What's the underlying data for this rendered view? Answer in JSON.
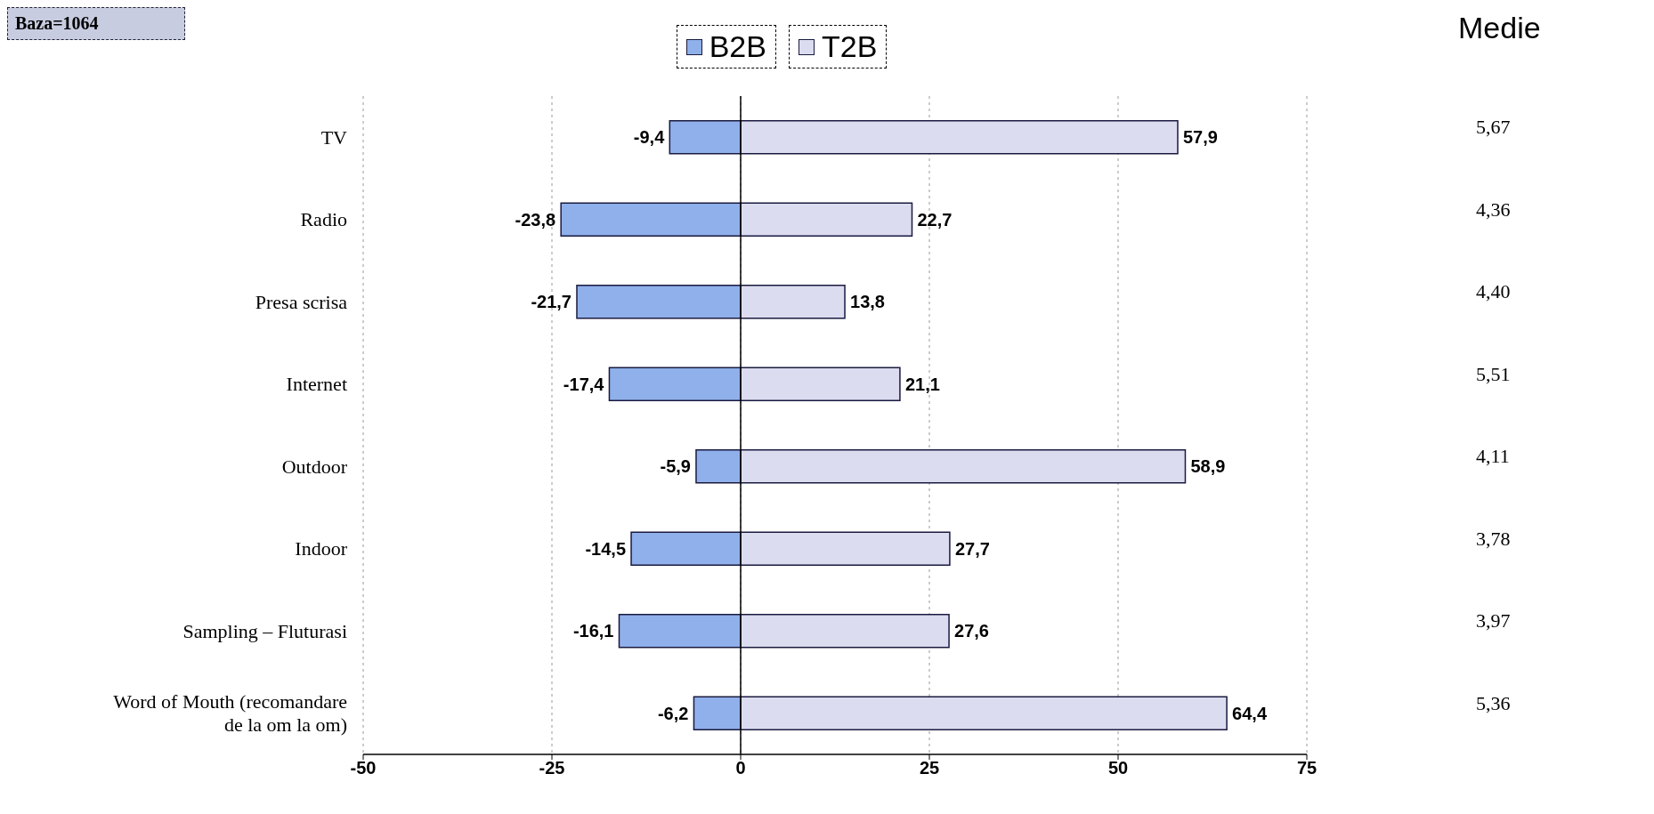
{
  "chart_data": {
    "type": "bar",
    "orientation": "horizontal",
    "stacked": true,
    "categories": [
      "TV",
      "Radio",
      "Presa scrisa",
      "Internet",
      "Outdoor",
      "Indoor",
      "Sampling – Fluturasi",
      "Word of Mouth (recomandare de la om la om)"
    ],
    "series": [
      {
        "name": "B2B",
        "color": "#8fb0ea",
        "values": [
          -9.4,
          -23.8,
          -21.7,
          -17.4,
          -5.9,
          -14.5,
          -16.1,
          -6.2
        ],
        "value_labels": [
          "-9,4",
          "-23,8",
          "-21,7",
          "-17,4",
          "-5,9",
          "-14,5",
          "-16,1",
          "-6,2"
        ]
      },
      {
        "name": "T2B",
        "color": "#dcdcf0",
        "values": [
          57.9,
          22.7,
          13.8,
          21.1,
          58.9,
          27.7,
          27.6,
          64.4
        ],
        "value_labels": [
          "57,9",
          "22,7",
          "13,8",
          "21,1",
          "58,9",
          "27,7",
          "27,6",
          "64,4"
        ]
      }
    ],
    "xlim": [
      -50,
      75
    ],
    "xticks": [
      -50,
      -25,
      0,
      25,
      50,
      75
    ],
    "grid": "x",
    "legend": "top",
    "ref_lines": [
      {
        "axis": "x",
        "value": 0
      }
    ],
    "annotations": [
      "Baza=1064",
      "Medie",
      "5,67",
      "4,36",
      "4,40",
      "5,51",
      "4,11",
      "3,78",
      "3,97",
      "5,36"
    ]
  }
}
